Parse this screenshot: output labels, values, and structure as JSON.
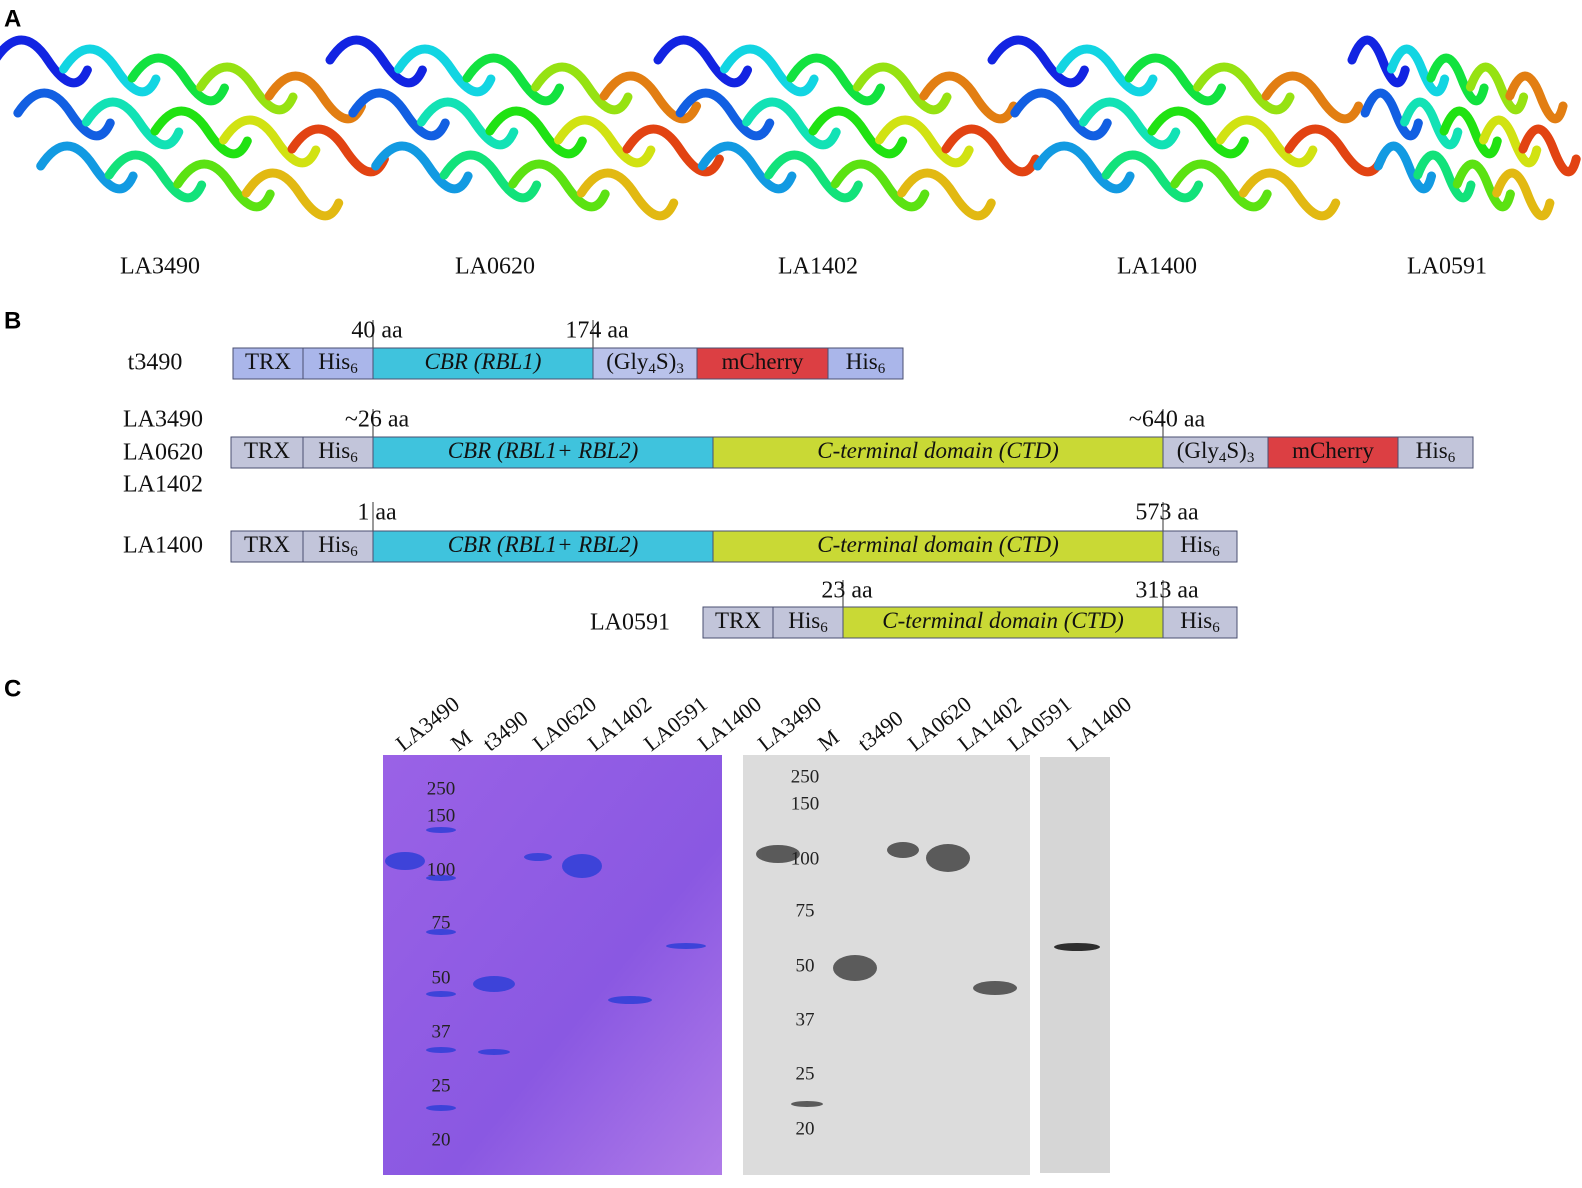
{
  "panel_a": {
    "label": "A",
    "structures": [
      "LA3490",
      "LA0620",
      "LA1402",
      "LA1400",
      "LA0591"
    ]
  },
  "panel_b": {
    "label": "B",
    "constructs": [
      {
        "names": [
          "t3490"
        ],
        "markers": [
          "40 aa",
          "174 aa"
        ],
        "domains": [
          {
            "parts": [
              {
                "t": "TRX"
              }
            ],
            "color": "#aab6ea"
          },
          {
            "parts": [
              {
                "t": "His"
              },
              {
                "t": "6",
                "sub": true
              }
            ],
            "color": "#aab6ea"
          },
          {
            "parts": [
              {
                "t": "CBR (RBL1)"
              }
            ],
            "color": "#3fc3dd",
            "italic": true
          },
          {
            "parts": [
              {
                "t": "(Gly"
              },
              {
                "t": "4",
                "sub": true
              },
              {
                "t": "S)"
              },
              {
                "t": "3",
                "sub": true
              }
            ],
            "color": "#b9c2ea"
          },
          {
            "parts": [
              {
                "t": "mCherry"
              }
            ],
            "color": "#dc3f43"
          },
          {
            "parts": [
              {
                "t": "His"
              },
              {
                "t": "6",
                "sub": true
              }
            ],
            "color": "#aab6ea"
          }
        ]
      },
      {
        "names": [
          "LA3490",
          "LA0620",
          "LA1402"
        ],
        "markers": [
          "~26 aa",
          "~640 aa"
        ],
        "domains": [
          {
            "parts": [
              {
                "t": "TRX"
              }
            ],
            "color": "#c2c5da"
          },
          {
            "parts": [
              {
                "t": "His"
              },
              {
                "t": "6",
                "sub": true
              }
            ],
            "color": "#c2c5da"
          },
          {
            "parts": [
              {
                "t": "CBR (RBL1+ RBL2)"
              }
            ],
            "color": "#3fc3dd",
            "italic": true
          },
          {
            "parts": [
              {
                "t": "C-terminal domain (CTD)"
              }
            ],
            "color": "#c9d935",
            "italic": true
          },
          {
            "parts": [
              {
                "t": "(Gly"
              },
              {
                "t": "4",
                "sub": true
              },
              {
                "t": "S)"
              },
              {
                "t": "3",
                "sub": true
              }
            ],
            "color": "#c2c5da"
          },
          {
            "parts": [
              {
                "t": "mCherry"
              }
            ],
            "color": "#dc3f43"
          },
          {
            "parts": [
              {
                "t": "His"
              },
              {
                "t": "6",
                "sub": true
              }
            ],
            "color": "#c2c5da"
          }
        ]
      },
      {
        "names": [
          "LA1400"
        ],
        "markers": [
          "1 aa",
          "573 aa"
        ],
        "domains": [
          {
            "parts": [
              {
                "t": "TRX"
              }
            ],
            "color": "#c2c5da"
          },
          {
            "parts": [
              {
                "t": "His"
              },
              {
                "t": "6",
                "sub": true
              }
            ],
            "color": "#c2c5da"
          },
          {
            "parts": [
              {
                "t": "CBR (RBL1+ RBL2)"
              }
            ],
            "color": "#3fc3dd",
            "italic": true
          },
          {
            "parts": [
              {
                "t": "C-terminal domain (CTD)"
              }
            ],
            "color": "#c9d935",
            "italic": true
          },
          {
            "parts": [
              {
                "t": "His"
              },
              {
                "t": "6",
                "sub": true
              }
            ],
            "color": "#c2c5da"
          }
        ]
      },
      {
        "names": [
          "LA0591"
        ],
        "markers": [
          "23 aa",
          "313 aa"
        ],
        "domains": [
          {
            "parts": [
              {
                "t": "TRX"
              }
            ],
            "color": "#c2c5da"
          },
          {
            "parts": [
              {
                "t": "His"
              },
              {
                "t": "6",
                "sub": true
              }
            ],
            "color": "#c2c5da"
          },
          {
            "parts": [
              {
                "t": "C-terminal domain (CTD)"
              }
            ],
            "color": "#c9d935",
            "italic": true
          },
          {
            "parts": [
              {
                "t": "His"
              },
              {
                "t": "6",
                "sub": true
              }
            ],
            "color": "#c2c5da"
          }
        ]
      }
    ]
  },
  "panel_c": {
    "label": "C",
    "gels": [
      {
        "lanes": [
          "LA3490",
          "M",
          "t3490",
          "LA0620",
          "LA1402",
          "LA0591",
          "LA1400"
        ],
        "markers": [
          "250",
          "150",
          "100",
          "75",
          "50",
          "37",
          "25",
          "20"
        ]
      },
      {
        "lanes": [
          "LA3490",
          "M",
          "t3490",
          "LA0620",
          "LA1402",
          "LA0591"
        ],
        "markers": [
          "250",
          "150",
          "100",
          "75",
          "50",
          "37",
          "25",
          "20"
        ]
      },
      {
        "lanes": [
          "LA1400"
        ],
        "markers": []
      }
    ]
  }
}
